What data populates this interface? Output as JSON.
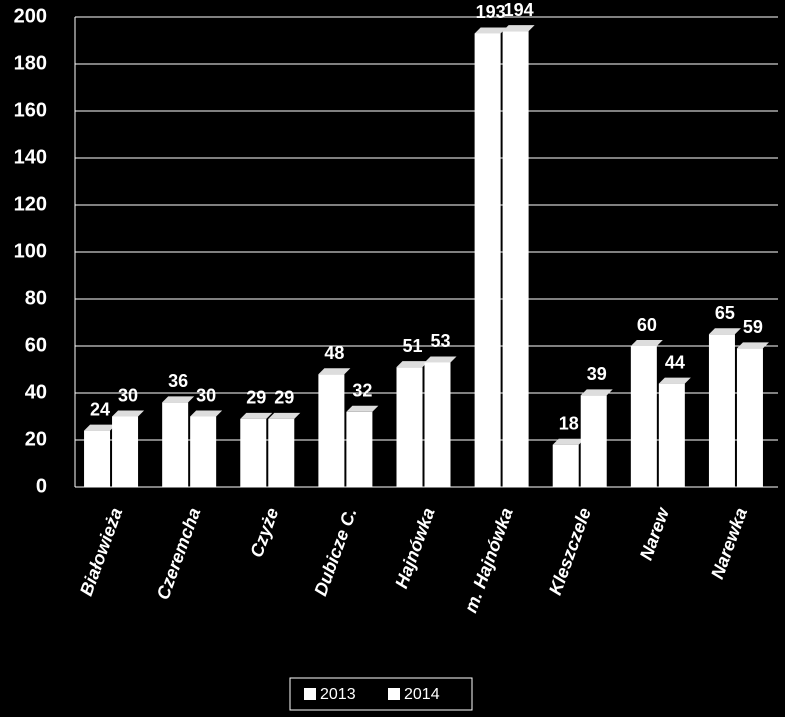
{
  "chart_data": {
    "type": "bar",
    "categories": [
      "Białowieża",
      "Czeremcha",
      "Czyże",
      "Dubicze C.",
      "Hajnówka",
      "m. Hajnówka",
      "Kleszczele",
      "Narew",
      "Narewka"
    ],
    "series": [
      {
        "name": "2013",
        "color": "#ffffff",
        "values": [
          24,
          36,
          29,
          48,
          51,
          193,
          18,
          60,
          65
        ]
      },
      {
        "name": "2014",
        "color": "#ffffff",
        "values": [
          30,
          30,
          29,
          32,
          53,
          194,
          39,
          44,
          59
        ]
      }
    ],
    "ylim": [
      0,
      200
    ],
    "yticks": [
      0,
      20,
      40,
      60,
      80,
      100,
      120,
      140,
      160,
      180,
      200
    ],
    "grid": true,
    "legend": "bottom"
  }
}
